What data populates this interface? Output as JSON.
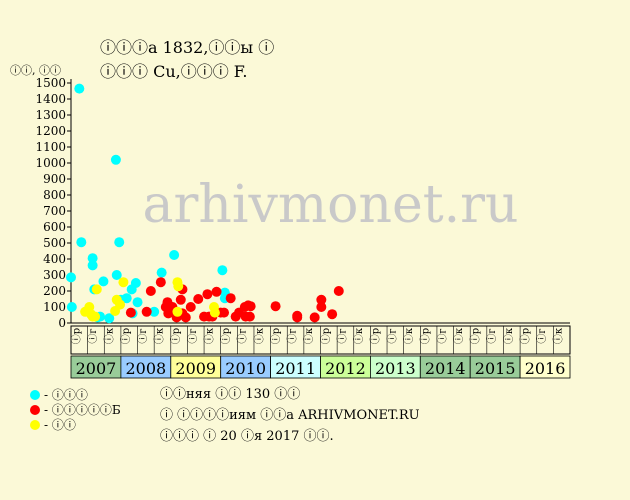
{
  "header": {
    "title_line1": "ⓘⓘⓘа 1832,ⓘⓘы ⓘ",
    "title_line2": "ⓘⓘⓘ Cu,ⓘⓘⓘ F."
  },
  "watermark": "arhivmonet.ru",
  "legend": [
    {
      "label": "- ⓘⓘⓘ",
      "color": "#00ffff"
    },
    {
      "label": "- ⓘⓘⓘⓘⓘБ",
      "color": "#ff0000"
    },
    {
      "label": "- ⓘⓘ",
      "color": "#ffff00"
    }
  ],
  "notes": [
    "ⓘⓘняя ⓘⓘ 130 ⓘⓘ",
    "ⓘ ⓘⓘⓘⓘиям ⓘⓘа ARHIVMONET.RU",
    "ⓘⓘⓘ ⓘ 20 ⓘя 2017 ⓘⓘ."
  ],
  "chart_data": {
    "type": "scatter",
    "title": "",
    "xlabel": "",
    "ylabel": "ⓘⓘ, ⓘⓘ",
    "ylim": [
      0,
      1500
    ],
    "yticks": [
      0,
      100,
      200,
      300,
      400,
      500,
      600,
      700,
      800,
      900,
      1000,
      1100,
      1200,
      1300,
      1400,
      1500
    ],
    "grid": false,
    "years": [
      "2007",
      "2008",
      "2009",
      "2010",
      "2011",
      "2012",
      "2013",
      "2014",
      "2015",
      "2016"
    ],
    "year_colors": [
      "#99cc99",
      "#99ccff",
      "#ffff99",
      "#99ccff",
      "#ccffff",
      "#ccff99",
      "#ccffcc",
      "#99cc99",
      "#99cc99",
      "#ffffcc"
    ],
    "quarter_labels": [
      "ⓘр",
      "ⓘг",
      "ⓘк"
    ],
    "series": [
      {
        "color": "#00ffff",
        "points": [
          {
            "x": 0.0,
            "y": 285
          },
          {
            "x": 0.05,
            "y": 100
          },
          {
            "x": 0.5,
            "y": 1465
          },
          {
            "x": 0.62,
            "y": 505
          },
          {
            "x": 1.3,
            "y": 405
          },
          {
            "x": 1.3,
            "y": 360
          },
          {
            "x": 1.4,
            "y": 210
          },
          {
            "x": 1.6,
            "y": 35
          },
          {
            "x": 1.75,
            "y": 40
          },
          {
            "x": 1.95,
            "y": 260
          },
          {
            "x": 2.3,
            "y": 30
          },
          {
            "x": 2.7,
            "y": 1020
          },
          {
            "x": 2.75,
            "y": 300
          },
          {
            "x": 2.9,
            "y": 505
          },
          {
            "x": 3.0,
            "y": 145
          },
          {
            "x": 3.35,
            "y": 155
          },
          {
            "x": 3.65,
            "y": 210
          },
          {
            "x": 3.7,
            "y": 60
          },
          {
            "x": 3.9,
            "y": 250
          },
          {
            "x": 4.0,
            "y": 130
          },
          {
            "x": 5.0,
            "y": 70
          },
          {
            "x": 5.45,
            "y": 315
          },
          {
            "x": 6.2,
            "y": 425
          },
          {
            "x": 9.1,
            "y": 330
          },
          {
            "x": 9.25,
            "y": 190
          },
          {
            "x": 9.25,
            "y": 155
          }
        ]
      },
      {
        "color": "#ff0000",
        "points": [
          {
            "x": 3.6,
            "y": 65
          },
          {
            "x": 4.55,
            "y": 70
          },
          {
            "x": 4.8,
            "y": 200
          },
          {
            "x": 5.4,
            "y": 255
          },
          {
            "x": 5.7,
            "y": 100
          },
          {
            "x": 5.8,
            "y": 130
          },
          {
            "x": 5.85,
            "y": 60
          },
          {
            "x": 6.1,
            "y": 100
          },
          {
            "x": 6.35,
            "y": 35
          },
          {
            "x": 6.6,
            "y": 145
          },
          {
            "x": 6.7,
            "y": 60
          },
          {
            "x": 6.7,
            "y": 210
          },
          {
            "x": 6.9,
            "y": 35
          },
          {
            "x": 7.2,
            "y": 100
          },
          {
            "x": 7.65,
            "y": 150
          },
          {
            "x": 8.0,
            "y": 40
          },
          {
            "x": 8.2,
            "y": 180
          },
          {
            "x": 8.3,
            "y": 40
          },
          {
            "x": 8.5,
            "y": 40
          },
          {
            "x": 8.75,
            "y": 195
          },
          {
            "x": 9.0,
            "y": 65
          },
          {
            "x": 9.2,
            "y": 65
          },
          {
            "x": 9.6,
            "y": 155
          },
          {
            "x": 9.9,
            "y": 40
          },
          {
            "x": 10.1,
            "y": 65
          },
          {
            "x": 10.45,
            "y": 100
          },
          {
            "x": 10.5,
            "y": 40
          },
          {
            "x": 10.65,
            "y": 110
          },
          {
            "x": 10.75,
            "y": 40
          },
          {
            "x": 10.8,
            "y": 105
          },
          {
            "x": 12.3,
            "y": 105
          },
          {
            "x": 13.6,
            "y": 45
          },
          {
            "x": 13.6,
            "y": 35
          },
          {
            "x": 14.65,
            "y": 35
          },
          {
            "x": 15.05,
            "y": 145
          },
          {
            "x": 15.05,
            "y": 100
          },
          {
            "x": 15.7,
            "y": 55
          },
          {
            "x": 16.1,
            "y": 200
          }
        ]
      },
      {
        "color": "#ffff00",
        "points": [
          {
            "x": 0.85,
            "y": 70
          },
          {
            "x": 1.1,
            "y": 100
          },
          {
            "x": 1.2,
            "y": 55
          },
          {
            "x": 1.3,
            "y": 40
          },
          {
            "x": 1.45,
            "y": 40
          },
          {
            "x": 1.55,
            "y": 210
          },
          {
            "x": 2.65,
            "y": 75
          },
          {
            "x": 2.75,
            "y": 145
          },
          {
            "x": 2.95,
            "y": 115
          },
          {
            "x": 3.15,
            "y": 255
          },
          {
            "x": 6.4,
            "y": 255
          },
          {
            "x": 6.45,
            "y": 230
          },
          {
            "x": 6.4,
            "y": 70
          },
          {
            "x": 8.6,
            "y": 100
          },
          {
            "x": 8.65,
            "y": 65
          }
        ]
      }
    ]
  }
}
